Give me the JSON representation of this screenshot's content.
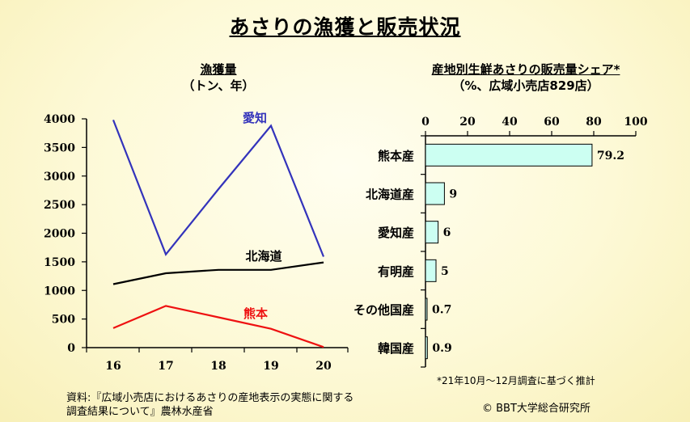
{
  "title": "あさりの漁獲と販売状況",
  "left_chart": {
    "title": "漁獲量",
    "unit": "（トン、年）"
  },
  "right_chart": {
    "title": "産地別生鮮あさりの販売量シェア*",
    "unit": "（%、広域小売店829店）"
  },
  "footer": {
    "source_line1": "資料:『広域小売店におけるあさりの産地表示の実態に関する",
    "source_line2": "調査結果について』農林水産省",
    "note": "*21年10月～12月調査に基づく推計",
    "copyright": "© BBT大学総合研究所"
  },
  "chart_data": [
    {
      "type": "line",
      "x": [
        "16",
        "17",
        "18",
        "19",
        "20"
      ],
      "ylim": [
        0,
        4000
      ],
      "yticks": [
        0,
        500,
        1000,
        1500,
        2000,
        2500,
        3000,
        3500,
        4000
      ],
      "grid": false,
      "series": [
        {
          "name": "愛知",
          "color": "#3333bb",
          "values": [
            3980,
            1630,
            2770,
            3880,
            1590
          ]
        },
        {
          "name": "北海道",
          "color": "#000000",
          "values": [
            1110,
            1300,
            1360,
            1360,
            1490
          ]
        },
        {
          "name": "熊本",
          "color": "#ee1111",
          "values": [
            340,
            730,
            530,
            330,
            10
          ]
        }
      ]
    },
    {
      "type": "bar",
      "orientation": "horizontal",
      "categories": [
        "熊本産",
        "北海道産",
        "愛知産",
        "有明産",
        "その他国産",
        "韓国産"
      ],
      "values": [
        79.2,
        9,
        6,
        5,
        0.7,
        0.9
      ],
      "value_labels": [
        "79.2",
        "9",
        "6",
        "5",
        "0.7",
        "0.9"
      ],
      "xlim": [
        0,
        100
      ],
      "xticks": [
        0,
        20,
        40,
        60,
        80,
        100
      ],
      "bar_color": "#ccfff2"
    }
  ]
}
